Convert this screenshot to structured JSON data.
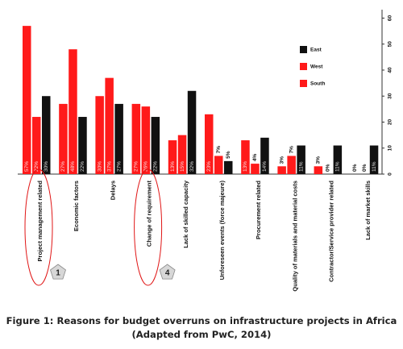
{
  "chart_data": {
    "type": "bar",
    "categories": [
      "Project management related",
      "Economic factors",
      "Delays",
      "Change of requirement",
      "Lack of skilled capacity",
      "Unforeseen events (force majeure)",
      "Procurement related",
      "Quality of materials and material costs",
      "Contractor/Service provider related",
      "Lack of market skills"
    ],
    "series": [
      {
        "name": "East",
        "color": "#111111",
        "values": [
          30,
          22,
          27,
          22,
          32,
          5,
          14,
          11,
          11,
          11
        ]
      },
      {
        "name": "West",
        "color": "#ff1a1a",
        "values": [
          57,
          27,
          30,
          27,
          13,
          23,
          13,
          3,
          3,
          0
        ]
      },
      {
        "name": "South",
        "color": "#ff1a1a",
        "values": [
          22,
          48,
          37,
          26,
          15,
          7,
          4,
          7,
          0,
          0
        ]
      }
    ],
    "draw_order": [
      "West",
      "South",
      "East"
    ],
    "bar_labels": [
      [
        "57%",
        "22%",
        "30%"
      ],
      [
        "27%",
        "48%",
        "22%"
      ],
      [
        "30%",
        "37%",
        "27%"
      ],
      [
        "27%",
        "26%",
        "22%"
      ],
      [
        "13%",
        "15%",
        "32%"
      ],
      [
        "23%",
        "7%",
        "5%"
      ],
      [
        "13%",
        "4%",
        "14%"
      ],
      [
        "3%",
        "7%",
        "11%"
      ],
      [
        "3%",
        "0%",
        "11%"
      ],
      [
        "0%",
        "0%",
        "11%"
      ]
    ],
    "y_ticks": [
      "0",
      "10",
      "20",
      "30",
      "40",
      "50",
      "60"
    ],
    "ylim": [
      0,
      62
    ],
    "y_axis_position": "right",
    "legend_position": "top-right",
    "grid": false,
    "annotations": [
      {
        "category": "Project management related",
        "marker": "1"
      },
      {
        "category": "Change of requirement",
        "marker": "4"
      }
    ]
  },
  "caption": {
    "line1": "Figure 1: Reasons for budget overruns on infrastructure projects in Africa",
    "line2": "(Adapted from PwC, 2014)"
  }
}
